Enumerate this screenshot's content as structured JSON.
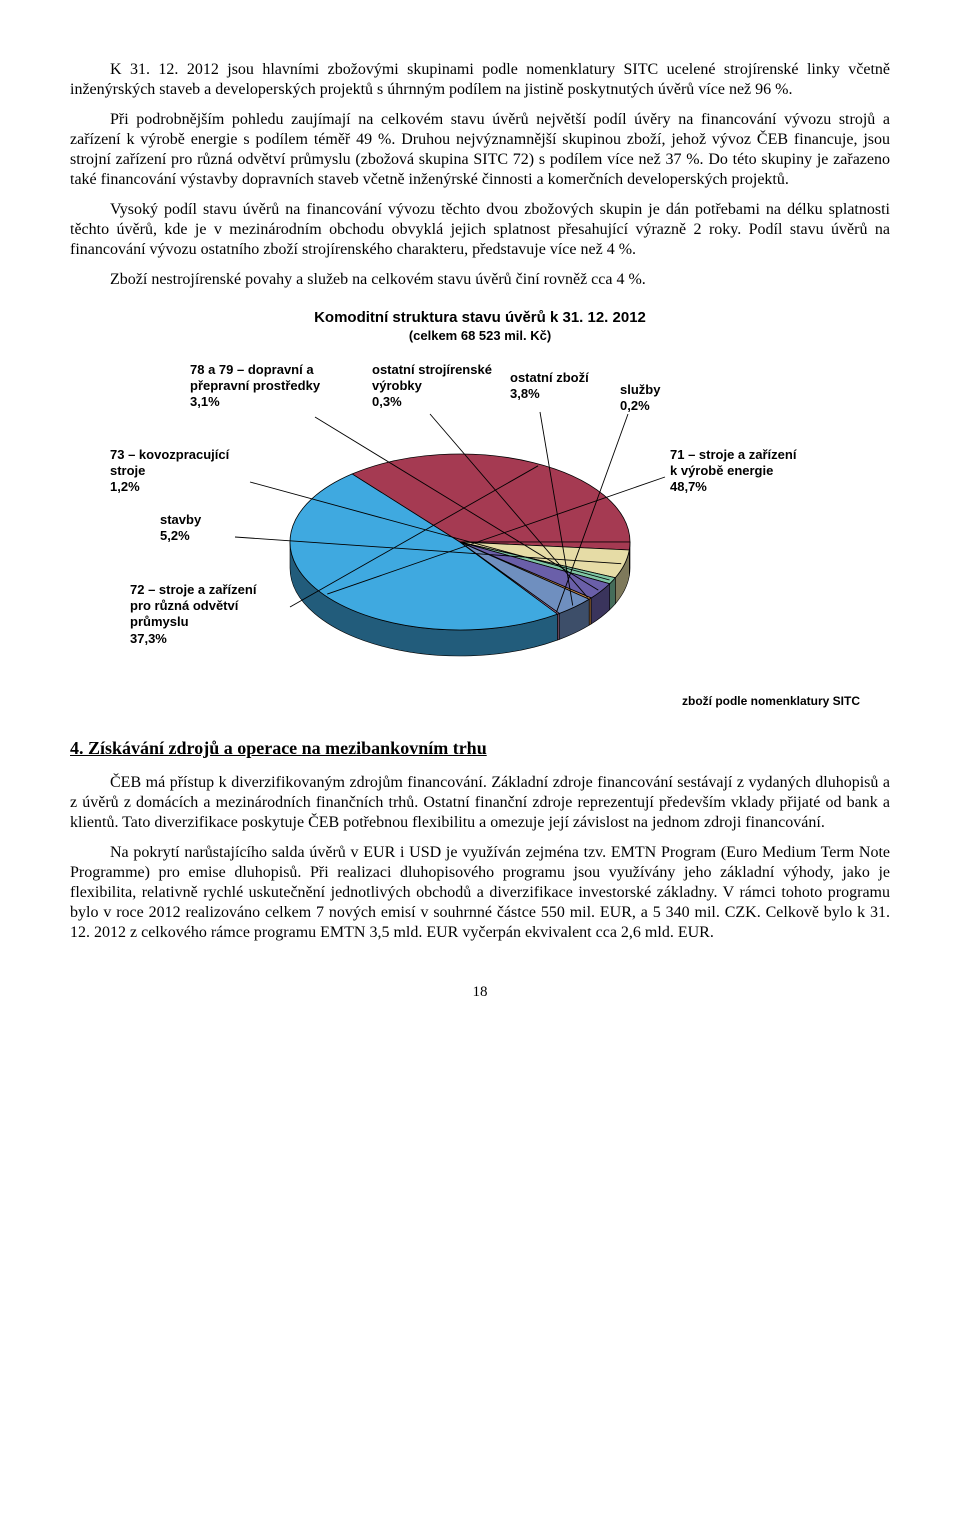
{
  "para1": "K 31. 12. 2012 jsou hlavními zbožovými skupinami podle nomenklatury SITC ucelené strojírenské linky včetně inženýrských staveb a developerských projektů s úhrnným podílem na jistině poskytnutých úvěrů více než 96 %.",
  "para2": "Při podrobnějším pohledu zaujímají na celkovém stavu úvěrů největší podíl úvěry na financování vývozu strojů a zařízení k výrobě energie s podílem téměř 49 %. Druhou nejvýznamnější skupinou zboží, jehož vývoz ČEB financuje, jsou strojní zařízení pro různá odvětví průmyslu (zbožová skupina SITC 72) s podílem více než 37 %. Do této skupiny je zařazeno také financování výstavby dopravních staveb včetně inženýrské činnosti a komerčních developerských projektů.",
  "para3": "Vysoký podíl stavu úvěrů na financování vývozu těchto dvou zbožových skupin je dán potřebami na délku splatnosti těchto úvěrů, kde je v mezinárodním obchodu obvyklá jejich splatnost přesahující výrazně 2 roky. Podíl stavu úvěrů na financování vývozu ostatního zboží strojírenského charakteru, představuje více než 4 %.",
  "para4": "Zboží nestrojírenské povahy a služeb na celkovém stavu úvěrů činí rovněž cca 4 %.",
  "chart": {
    "title": "Komoditní struktura stavu úvěrů k 31. 12. 2012",
    "subtitle": "(celkem 68 523 mil. Kč)",
    "type": "pie-3d",
    "data": [
      {
        "label": "71 – stroje a zařízení\nk výrobě energie\n48,7%",
        "value": 48.7,
        "color": "#3fa9e0"
      },
      {
        "label": "72 – stroje a zařízení\npro různá odvětví\nprůmyslu\n37,3%",
        "value": 37.3,
        "color": "#a53a52"
      },
      {
        "label": "stavby\n5,2%",
        "value": 5.2,
        "color": "#e6dca6"
      },
      {
        "label": "73 – kovozpracující\nstroje\n1,2%",
        "value": 1.2,
        "color": "#7fc6a4"
      },
      {
        "label": "78 a 79 – dopravní a\npřepravní prostředky\n3,1%",
        "value": 3.1,
        "color": "#6a5fa9"
      },
      {
        "label": "ostatní strojírenské\nvýrobky\n0,3%",
        "value": 0.3,
        "color": "#d48f4a"
      },
      {
        "label": "ostatní zboží\n3,8%",
        "value": 3.8,
        "color": "#6f8fbf"
      },
      {
        "label": "služby\n0,2%",
        "value": 0.2,
        "color": "#c67ea8"
      }
    ],
    "legend_note": "zboží podle nomenklatury SITC",
    "background_color": "#ffffff",
    "depth_shade": "#2c2c2c"
  },
  "section_heading": "4. Získávání zdrojů a operace na mezibankovním trhu",
  "para5": "ČEB má přístup k diverzifikovaným zdrojům financování. Základní zdroje financování sestávají z vydaných dluhopisů a z úvěrů z domácích a mezinárodních finančních trhů. Ostatní finanční zdroje reprezentují především vklady přijaté od bank a klientů. Tato diverzifikace poskytuje ČEB potřebnou flexibilitu a omezuje její závislost na jednom zdroji financování.",
  "para6": "Na pokrytí narůstajícího salda úvěrů v EUR i USD je využíván zejména tzv. EMTN Program (Euro Medium Term Note Programme) pro emise dluhopisů. Při realizaci dluhopisového programu jsou využívány jeho základní výhody, jako je flexibilita, relativně rychlé uskutečnění jednotlivých obchodů a diverzifikace investorské základny. V rámci tohoto programu bylo v roce 2012 realizováno celkem 7 nových emisí v souhrnné částce 550 mil. EUR, a 5 340 mil. CZK. Celkově bylo k 31. 12. 2012 z celkového rámce programu EMTN 3,5 mld. EUR vyčerpán ekvivalent cca 2,6 mld. EUR.",
  "page_number": "18"
}
